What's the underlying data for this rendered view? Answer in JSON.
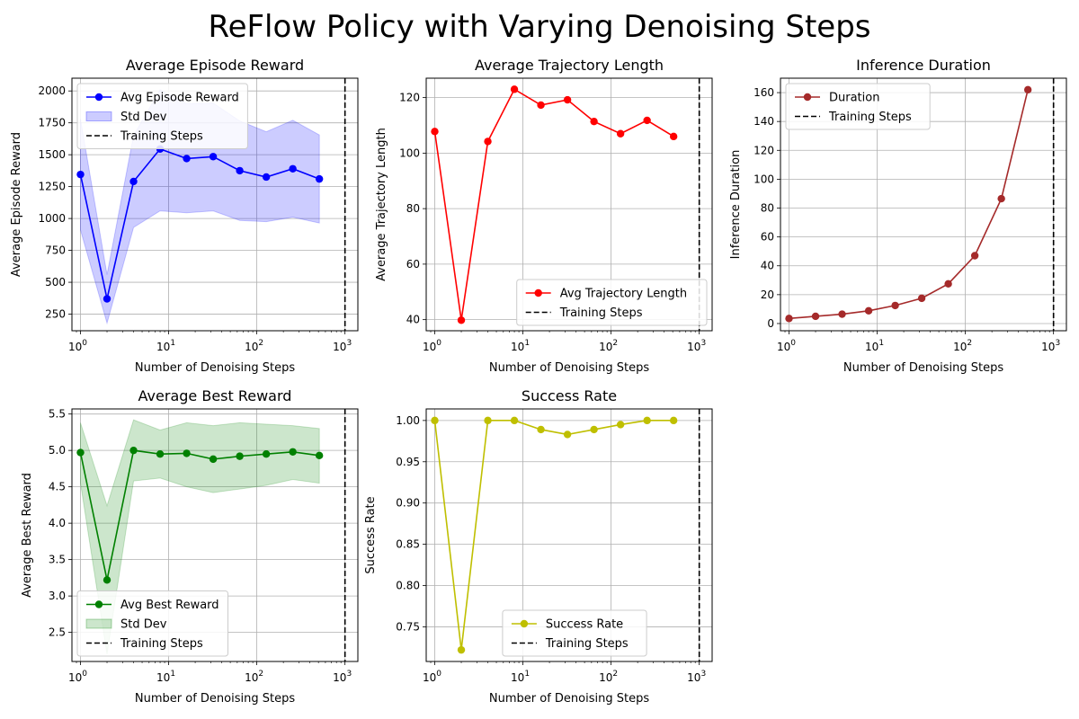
{
  "figure": {
    "title": "ReFlow Policy with Varying Denoising Steps"
  },
  "chart_data": [
    {
      "type": "line",
      "title": "Average Episode Reward",
      "xlabel": "Number of Denoising Steps",
      "ylabel": "Average Episode Reward",
      "xscale": "log",
      "xlim": [
        0.8,
        1400
      ],
      "ylim": [
        120,
        2100
      ],
      "xticks": [
        1,
        10,
        100,
        1000
      ],
      "yticks": [
        250,
        500,
        750,
        1000,
        1250,
        1500,
        1750,
        2000
      ],
      "grid": true,
      "legend_loc": "upper-left",
      "x": [
        1,
        2,
        4,
        8,
        16,
        32,
        64,
        128,
        256,
        512
      ],
      "series": [
        {
          "name": "Avg Episode Reward",
          "color": "#0000ff",
          "marker": "circle",
          "values": [
            1345,
            370,
            1290,
            1545,
            1470,
            1485,
            1375,
            1325,
            1390,
            1310
          ]
        },
        {
          "name": "Std Dev",
          "kind": "band",
          "color": "#0000ff",
          "lower": [
            910,
            180,
            930,
            1060,
            1045,
            1060,
            985,
            975,
            1010,
            965
          ],
          "upper": [
            1780,
            560,
            1650,
            2010,
            1900,
            1905,
            1765,
            1680,
            1770,
            1655
          ]
        }
      ],
      "vline": {
        "name": "Training Steps",
        "x": 1000,
        "color": "#000000",
        "style": "dashed"
      }
    },
    {
      "type": "line",
      "title": "Average Trajectory Length",
      "xlabel": "Number of Denoising Steps",
      "ylabel": "Average Trajectory Length",
      "xscale": "log",
      "xlim": [
        0.8,
        1400
      ],
      "ylim": [
        36,
        127
      ],
      "xticks": [
        1,
        10,
        100,
        1000
      ],
      "yticks": [
        40,
        60,
        80,
        100,
        120
      ],
      "grid": true,
      "legend_loc": "lower-right",
      "x": [
        1,
        2,
        4,
        8,
        16,
        32,
        64,
        128,
        256,
        512
      ],
      "series": [
        {
          "name": "Avg Trajectory Length",
          "color": "#ff0000",
          "marker": "circle",
          "values": [
            107.8,
            39.8,
            104.2,
            123,
            117.3,
            119.2,
            111.4,
            107,
            111.8,
            106
          ]
        }
      ],
      "vline": {
        "name": "Training Steps",
        "x": 1000,
        "color": "#000000",
        "style": "dashed"
      }
    },
    {
      "type": "line",
      "title": "Inference Duration",
      "xlabel": "Number of Denoising Steps",
      "ylabel": "Inference Duration",
      "xscale": "log",
      "xlim": [
        0.8,
        1400
      ],
      "ylim": [
        -5,
        170
      ],
      "xticks": [
        1,
        10,
        100,
        1000
      ],
      "yticks": [
        0,
        20,
        40,
        60,
        80,
        100,
        120,
        140,
        160
      ],
      "grid": true,
      "legend_loc": "upper-left",
      "x": [
        1,
        2,
        4,
        8,
        16,
        32,
        64,
        128,
        256,
        512
      ],
      "series": [
        {
          "name": "Duration",
          "color": "#a52a2a",
          "marker": "circle",
          "values": [
            3.5,
            5,
            6.5,
            8.8,
            12.5,
            17.5,
            27.5,
            47,
            86.5,
            162
          ]
        }
      ],
      "vline": {
        "name": "Training Steps",
        "x": 1000,
        "color": "#000000",
        "style": "dashed"
      }
    },
    {
      "type": "line",
      "title": "Average Best Reward",
      "xlabel": "Number of Denoising Steps",
      "ylabel": "Average Best Reward",
      "xscale": "log",
      "xlim": [
        0.8,
        1400
      ],
      "ylim": [
        2.1,
        5.57
      ],
      "xticks": [
        1,
        10,
        100,
        1000
      ],
      "yticks": [
        2.5,
        3.0,
        3.5,
        4.0,
        4.5,
        5.0,
        5.5
      ],
      "grid": true,
      "legend_loc": "lower-left",
      "x": [
        1,
        2,
        4,
        8,
        16,
        32,
        64,
        128,
        256,
        512
      ],
      "series": [
        {
          "name": "Avg Best Reward",
          "color": "#008000",
          "marker": "circle",
          "values": [
            4.97,
            3.22,
            5.0,
            4.95,
            4.96,
            4.88,
            4.92,
            4.95,
            4.98,
            4.93
          ]
        },
        {
          "name": "Std Dev",
          "kind": "band",
          "color": "#008000",
          "lower": [
            4.55,
            2.2,
            4.58,
            4.62,
            4.5,
            4.42,
            4.47,
            4.52,
            4.6,
            4.55
          ],
          "upper": [
            5.38,
            4.24,
            5.42,
            5.28,
            5.38,
            5.34,
            5.38,
            5.36,
            5.34,
            5.3
          ]
        }
      ],
      "vline": {
        "name": "Training Steps",
        "x": 1000,
        "color": "#000000",
        "style": "dashed"
      }
    },
    {
      "type": "line",
      "title": "Success Rate",
      "xlabel": "Number of Denoising Steps",
      "ylabel": "Success Rate",
      "xscale": "log",
      "xlim": [
        0.8,
        1400
      ],
      "ylim": [
        0.708,
        1.014
      ],
      "xticks": [
        1,
        10,
        100,
        1000
      ],
      "yticks": [
        0.75,
        0.8,
        0.85,
        0.9,
        0.95,
        1.0
      ],
      "ytick_decimals": 2,
      "grid": true,
      "legend_loc": "lower-center",
      "x": [
        1,
        2,
        4,
        8,
        16,
        32,
        64,
        128,
        256,
        512
      ],
      "series": [
        {
          "name": "Success Rate",
          "color": "#bfbf00",
          "marker": "circle",
          "values": [
            1.0,
            0.722,
            1.0,
            1.0,
            0.989,
            0.983,
            0.989,
            0.995,
            1.0,
            1.0
          ]
        }
      ],
      "vline": {
        "name": "Training Steps",
        "x": 1000,
        "color": "#000000",
        "style": "dashed"
      }
    }
  ]
}
